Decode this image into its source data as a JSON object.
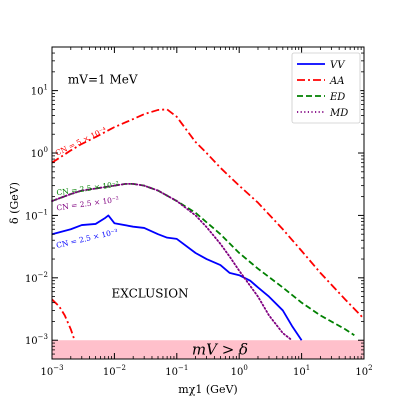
{
  "chart_data": {
    "type": "line",
    "title": "",
    "xlabel": "mχ1 (GeV)",
    "ylabel": "δ (GeV)",
    "xscale": "log",
    "yscale": "log",
    "xlim": [
      0.001,
      100
    ],
    "ylim": [
      0.0005,
      50
    ],
    "x_ticks": [
      {
        "value": 0.001,
        "base": "10",
        "exp": "−3"
      },
      {
        "value": 0.01,
        "base": "10",
        "exp": "−2"
      },
      {
        "value": 0.1,
        "base": "10",
        "exp": "−1"
      },
      {
        "value": 1,
        "base": "10",
        "exp": "0"
      },
      {
        "value": 10,
        "base": "10",
        "exp": "1"
      },
      {
        "value": 100,
        "base": "10",
        "exp": "2"
      }
    ],
    "y_ticks": [
      {
        "value": 0.001,
        "base": "10",
        "exp": "−3"
      },
      {
        "value": 0.01,
        "base": "10",
        "exp": "−2"
      },
      {
        "value": 0.1,
        "base": "10",
        "exp": "−1"
      },
      {
        "value": 1,
        "base": "10",
        "exp": "0"
      },
      {
        "value": 10,
        "base": "10",
        "exp": "1"
      }
    ],
    "legend_position": "top-right",
    "grid": false,
    "series": [
      {
        "name": "VV",
        "color": "#0000ff",
        "dash": "solid",
        "x": [
          0.001,
          0.002,
          0.003,
          0.005,
          0.007,
          0.008,
          0.01,
          0.02,
          0.03,
          0.05,
          0.07,
          0.1,
          0.2,
          0.3,
          0.5,
          0.7,
          1,
          1.5,
          2,
          3,
          5,
          7,
          10
        ],
        "y": [
          0.05,
          0.06,
          0.07,
          0.073,
          0.09,
          0.1,
          0.075,
          0.066,
          0.063,
          0.05,
          0.044,
          0.042,
          0.025,
          0.02,
          0.016,
          0.012,
          0.011,
          0.009,
          0.007,
          0.005,
          0.003,
          0.0017,
          0.001
        ]
      },
      {
        "name": "AA",
        "color": "#ff0000",
        "dash": "dashdot",
        "x": [
          0.001,
          0.002,
          0.003,
          0.005,
          0.01,
          0.02,
          0.03,
          0.05,
          0.07,
          0.1,
          0.15,
          0.2,
          0.3,
          0.5,
          1,
          2,
          5,
          10,
          20,
          50,
          100
        ],
        "y": [
          0.7,
          1.1,
          1.4,
          1.8,
          2.6,
          3.5,
          4.2,
          4.9,
          5.0,
          3.8,
          2.2,
          1.5,
          1.0,
          0.58,
          0.3,
          0.16,
          0.06,
          0.027,
          0.012,
          0.0045,
          0.0022
        ]
      },
      {
        "name": "AA (low-mass)",
        "color": "#ff0000",
        "dash": "dashdot",
        "x": [
          0.001,
          0.0013,
          0.0016,
          0.002,
          0.0023
        ],
        "y": [
          0.0045,
          0.0035,
          0.0025,
          0.0015,
          0.001
        ]
      },
      {
        "name": "ED",
        "color": "#008000",
        "dash": "dashed",
        "x": [
          0.001,
          0.002,
          0.003,
          0.005,
          0.01,
          0.015,
          0.02,
          0.03,
          0.05,
          0.1,
          0.2,
          0.5,
          1,
          2,
          5,
          10,
          20,
          50,
          70
        ],
        "y": [
          0.17,
          0.22,
          0.25,
          0.27,
          0.3,
          0.32,
          0.32,
          0.3,
          0.25,
          0.17,
          0.11,
          0.05,
          0.025,
          0.014,
          0.007,
          0.004,
          0.0025,
          0.0015,
          0.0012
        ]
      },
      {
        "name": "MD",
        "color": "#800080",
        "dash": "dotted",
        "x": [
          0.001,
          0.002,
          0.003,
          0.005,
          0.01,
          0.015,
          0.02,
          0.03,
          0.05,
          0.1,
          0.2,
          0.3,
          0.5,
          0.7,
          1,
          2,
          3,
          5,
          7
        ],
        "y": [
          0.17,
          0.22,
          0.25,
          0.27,
          0.3,
          0.32,
          0.32,
          0.3,
          0.25,
          0.17,
          0.1,
          0.065,
          0.035,
          0.022,
          0.013,
          0.005,
          0.0025,
          0.0013,
          0.001
        ]
      }
    ],
    "shaded_region": {
      "label": "mV > δ",
      "color": "#ffc0cb",
      "y_from": 0.0005,
      "y_to": 0.001
    },
    "annotations": [
      {
        "text": "mV=1 MeV",
        "color": "#000000",
        "x": 0.0018,
        "y": 13,
        "size": "large",
        "rotate": 0
      },
      {
        "text": "EXCLUSION",
        "color": "#000000",
        "x": 0.009,
        "y": 0.0048,
        "size": "large",
        "rotate": 0
      },
      {
        "text": "CN = 5 × 10⁻⁴",
        "color": "#ff0000",
        "x": 0.0012,
        "y": 0.9,
        "size": "small",
        "rotate": -26
      },
      {
        "text": "CN = 2.5 × 10⁻²",
        "color": "#008000",
        "x": 0.0012,
        "y": 0.21,
        "size": "small",
        "rotate": -8
      },
      {
        "text": "CN = 2.5 × 10⁻²",
        "color": "#800080",
        "x": 0.0012,
        "y": 0.12,
        "size": "small",
        "rotate": -8
      },
      {
        "text": "CN = 2.5 × 10⁻³",
        "color": "#0000ff",
        "x": 0.0012,
        "y": 0.03,
        "size": "small",
        "rotate": -13
      }
    ]
  }
}
